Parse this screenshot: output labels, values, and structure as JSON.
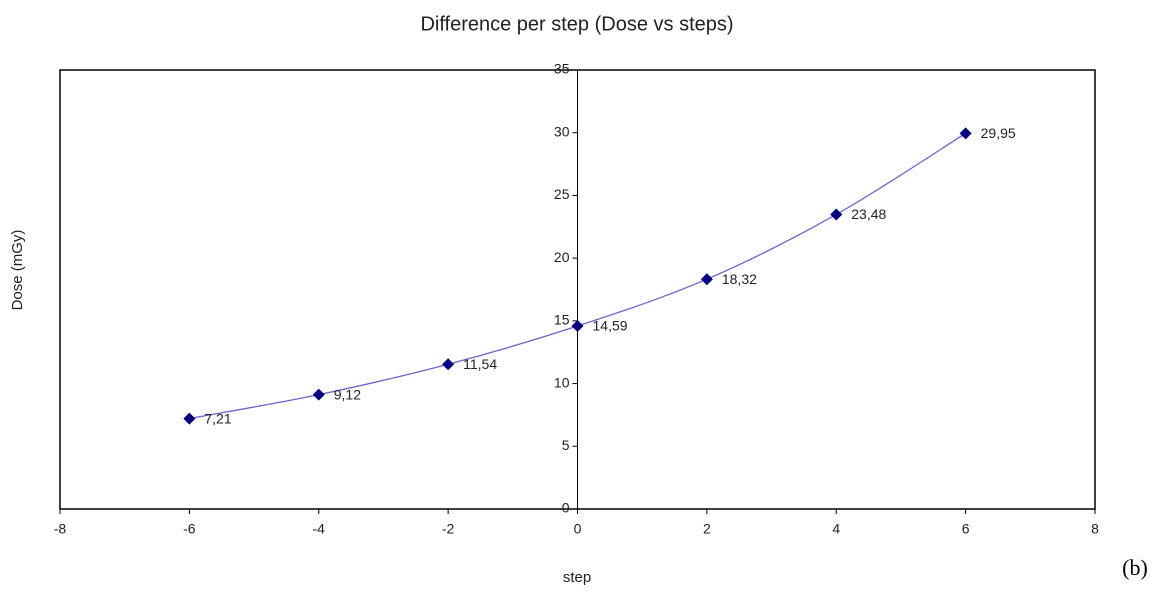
{
  "chart_data": {
    "type": "scatter",
    "title": "Difference per step (Dose vs steps)",
    "x_label": "step",
    "y_label": "Dose (mGy)",
    "annotation": "(b)",
    "x": [
      -6,
      -4,
      -2,
      0,
      2,
      4,
      6
    ],
    "series": [
      {
        "name": "Dose",
        "color": "#000080",
        "line_color": "#6666cc",
        "values": [
          7.21,
          9.12,
          11.54,
          14.59,
          18.32,
          23.48,
          29.95
        ],
        "value_labels": [
          "7,21",
          "9,12",
          "11,54",
          "14,59",
          "18,32",
          "23,48",
          "29,95"
        ]
      }
    ],
    "xlim": [
      -8,
      8
    ],
    "xticks": [
      -8,
      -6,
      -4,
      -2,
      0,
      2,
      4,
      6,
      8
    ],
    "ylim": [
      0,
      35
    ],
    "yticks": [
      0,
      5,
      10,
      15,
      20,
      25,
      30,
      35
    ],
    "smooth": true,
    "grid": false
  }
}
